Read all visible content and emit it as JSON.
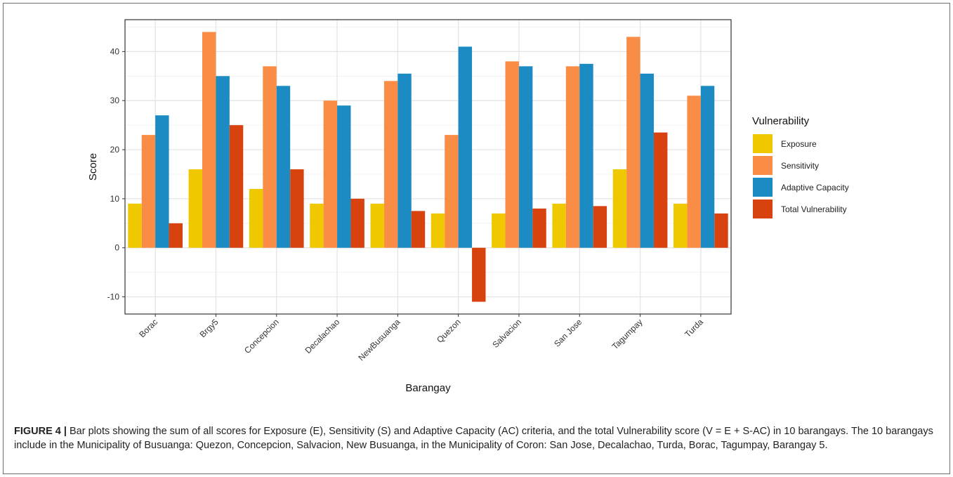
{
  "chart_data": {
    "type": "bar",
    "xlabel": "Barangay",
    "ylabel": "Score",
    "ylim": [
      -13.5,
      46.5
    ],
    "yticks": [
      -10,
      0,
      10,
      20,
      30,
      40
    ],
    "grid": true,
    "legend_position": "right",
    "legend_title": "Vulnerability",
    "categories": [
      "Borac",
      "Brgy5",
      "Concepcion",
      "Decalachao",
      "NewBusuanga",
      "Quezon",
      "Salvacion",
      "San Jose",
      "Tagumpay",
      "Turda"
    ],
    "series": [
      {
        "name": "Exposure",
        "color": "#f0c800",
        "values": [
          9,
          16,
          12,
          9,
          9,
          7,
          7,
          9,
          16,
          9
        ]
      },
      {
        "name": "Sensitivity",
        "color": "#f98d45",
        "values": [
          23,
          44,
          37,
          30,
          34,
          23,
          38,
          37,
          43,
          31
        ]
      },
      {
        "name": "Adaptive Capacity",
        "color": "#1c8bc4",
        "values": [
          27,
          35,
          33,
          29,
          35.5,
          41,
          37,
          37.5,
          35.5,
          33
        ]
      },
      {
        "name": "Total Vulnerability",
        "color": "#d8420f",
        "values": [
          5,
          25,
          16,
          10,
          7.5,
          -11,
          8,
          8.5,
          23.5,
          7
        ]
      }
    ]
  },
  "caption": {
    "label": "FIGURE 4 |",
    "text": " Bar plots showing the sum of all scores for Exposure (E), Sensitivity (S) and Adaptive Capacity (AC) criteria, and the total Vulnerability score (V = E + S-AC) in 10 barangays. The 10 barangays include in the Municipality of Busuanga: Quezon, Concepcion, Salvacion, New Busuanga, in the Municipality of Coron: San Jose, Decalachao, Turda, Borac, Tagumpay, Barangay 5."
  }
}
